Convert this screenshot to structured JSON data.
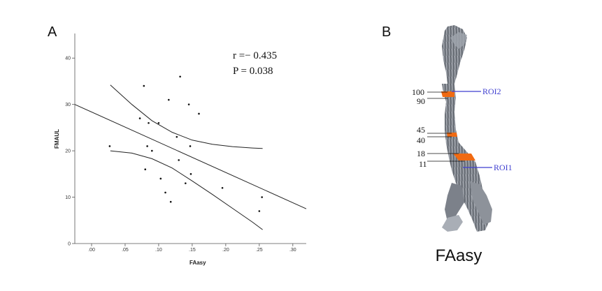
{
  "panels": {
    "a": "A",
    "b": "B"
  },
  "chart_data": {
    "type": "scatter",
    "xlabel": "FAasy",
    "ylabel": "FMAUL",
    "xlim": [
      -0.025,
      0.32
    ],
    "ylim": [
      0,
      45
    ],
    "xticks": [
      0.0,
      0.05,
      0.1,
      0.15,
      0.2,
      0.25,
      0.3
    ],
    "xtick_labels": [
      ".00",
      ".05",
      ".10",
      ".15",
      ".20",
      ".25",
      ".30"
    ],
    "yticks": [
      0,
      10,
      20,
      30,
      40
    ],
    "ytick_labels": [
      "0",
      "10",
      "20",
      "30",
      "40"
    ],
    "grid": false,
    "points": [
      {
        "x": 0.027,
        "y": 21
      },
      {
        "x": 0.072,
        "y": 27
      },
      {
        "x": 0.078,
        "y": 34
      },
      {
        "x": 0.08,
        "y": 16
      },
      {
        "x": 0.083,
        "y": 21
      },
      {
        "x": 0.085,
        "y": 26
      },
      {
        "x": 0.09,
        "y": 20
      },
      {
        "x": 0.1,
        "y": 26
      },
      {
        "x": 0.103,
        "y": 14
      },
      {
        "x": 0.11,
        "y": 11
      },
      {
        "x": 0.115,
        "y": 31
      },
      {
        "x": 0.118,
        "y": 9
      },
      {
        "x": 0.127,
        "y": 23
      },
      {
        "x": 0.13,
        "y": 18
      },
      {
        "x": 0.132,
        "y": 36
      },
      {
        "x": 0.14,
        "y": 13
      },
      {
        "x": 0.145,
        "y": 30
      },
      {
        "x": 0.147,
        "y": 21
      },
      {
        "x": 0.148,
        "y": 15
      },
      {
        "x": 0.16,
        "y": 28
      },
      {
        "x": 0.195,
        "y": 12
      },
      {
        "x": 0.25,
        "y": 7
      },
      {
        "x": 0.254,
        "y": 10
      }
    ],
    "fit_line": {
      "x": [
        -0.025,
        0.32
      ],
      "y": [
        30.0,
        7.5
      ]
    },
    "ci_upper": {
      "x": [
        0.028,
        0.06,
        0.09,
        0.12,
        0.15,
        0.18,
        0.21,
        0.24,
        0.255
      ],
      "y": [
        34.2,
        30.0,
        26.5,
        24.0,
        22.3,
        21.4,
        20.9,
        20.6,
        20.5
      ]
    },
    "ci_lower": {
      "x": [
        0.028,
        0.06,
        0.09,
        0.12,
        0.15,
        0.18,
        0.21,
        0.24,
        0.255
      ],
      "y": [
        20.0,
        19.5,
        18.3,
        16.3,
        13.5,
        10.6,
        7.6,
        4.6,
        3.0
      ]
    },
    "annotation": {
      "r_label": "r =− 0.435",
      "p_label": "P = 0.038"
    }
  },
  "tract": {
    "title": "FAasy",
    "ticks": [
      "100",
      "90",
      "45",
      "40",
      "18",
      "11"
    ],
    "rois": [
      "ROI2",
      "ROI1"
    ],
    "highlight_color": "#f06a12",
    "roi_color": "#3f3fd0"
  }
}
